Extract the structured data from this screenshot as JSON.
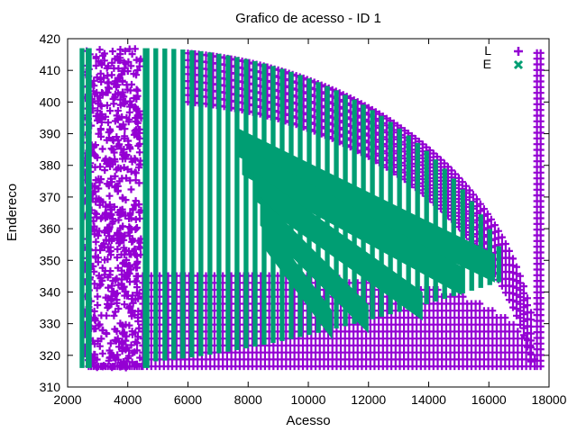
{
  "chart_data": {
    "type": "scatter",
    "title": "Grafico de acesso - ID 1",
    "xlabel": "Acesso",
    "ylabel": "Endereco",
    "xlim": [
      2000,
      18000
    ],
    "ylim": [
      310,
      420
    ],
    "x_ticks": [
      2000,
      4000,
      6000,
      8000,
      10000,
      12000,
      14000,
      16000,
      18000
    ],
    "y_ticks": [
      310,
      320,
      330,
      340,
      350,
      360,
      370,
      380,
      390,
      400,
      410,
      420
    ],
    "grid": false,
    "legend_position": "top-right",
    "series": [
      {
        "name": "L",
        "marker": "plus",
        "color": "#9400d3",
        "description_regions": {
          "left_scatter": {
            "x": [
              2400,
              4500
            ],
            "y": [
              316,
              417
            ]
          },
          "lower_arc_band": {
            "x_start": 4500,
            "x_end": 17600,
            "y": [
              316,
              345
            ]
          },
          "right_column": {
            "x": [
              17500,
              17800
            ],
            "y": [
              316,
              416
            ]
          }
        }
      },
      {
        "name": "E",
        "marker": "cross",
        "color": "#009e73",
        "description_regions": {
          "left_column": {
            "x": [
              2400,
              2800
            ],
            "y": [
              316,
              417
            ]
          },
          "left_column_2": {
            "x": [
              4500,
              4700
            ],
            "y": [
              316,
              417
            ]
          },
          "stripes_start": 4800,
          "stripes_end": 16500
        }
      }
    ]
  }
}
